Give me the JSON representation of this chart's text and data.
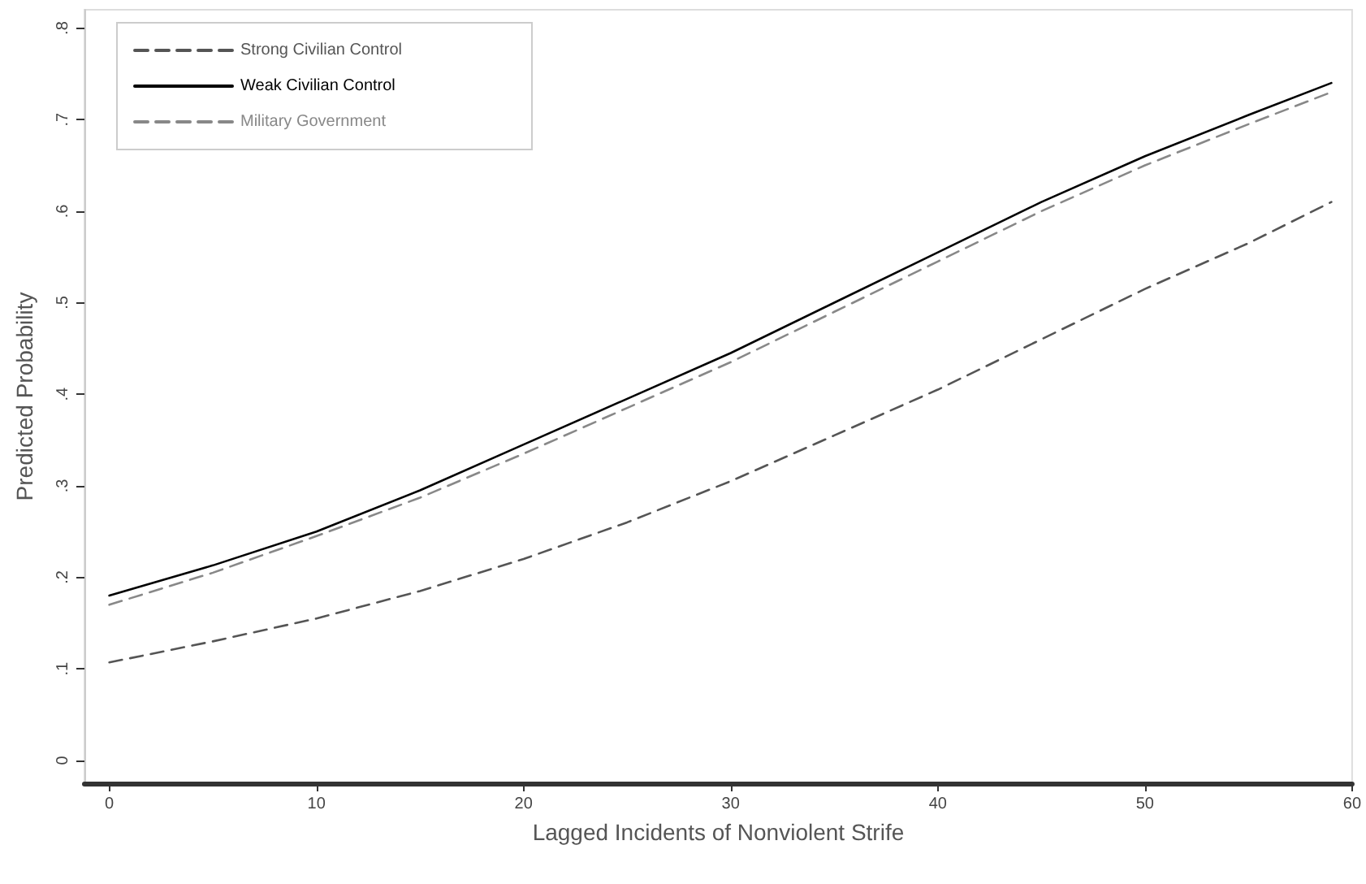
{
  "chart_data": {
    "type": "line",
    "xlabel": "Lagged Incidents of Nonviolent Strife",
    "ylabel": "Predicted Probability",
    "xlim": [
      -1.2,
      60
    ],
    "xticks": [
      0,
      10,
      20,
      30,
      40,
      50,
      60
    ],
    "ylim": [
      -0.025,
      0.82
    ],
    "yticks": [
      0,
      {
        "value": 0.1,
        "label": ".1"
      },
      {
        "value": 0.2,
        "label": ".2"
      },
      {
        "value": 0.3,
        "label": ".3"
      },
      {
        "value": 0.4,
        "label": ".4"
      },
      {
        "value": 0.5,
        "label": ".5"
      },
      {
        "value": 0.6,
        "label": ".6"
      },
      {
        "value": 0.7,
        "label": ".7"
      },
      {
        "value": 0.8,
        "label": ".8"
      }
    ],
    "x": [
      0,
      5,
      10,
      15,
      20,
      25,
      30,
      35,
      40,
      45,
      50,
      55,
      59
    ],
    "legend": "top left",
    "grid": false,
    "marker": "none",
    "series": [
      {
        "name": "Strong Civilian Control",
        "color": "#555555",
        "line_style": "dashed",
        "values": [
          0.107,
          0.13,
          0.155,
          0.185,
          0.22,
          0.26,
          0.305,
          0.355,
          0.405,
          0.46,
          0.515,
          0.565,
          0.61
        ]
      },
      {
        "name": "Weak Civilian Control",
        "color": "#000000",
        "line_style": "solid",
        "values": [
          0.18,
          0.213,
          0.25,
          0.295,
          0.345,
          0.395,
          0.445,
          0.5,
          0.555,
          0.61,
          0.66,
          0.705,
          0.74
        ]
      },
      {
        "name": "Military Government",
        "color": "#888888",
        "line_style": "dashed",
        "values": [
          0.17,
          0.205,
          0.245,
          0.287,
          0.335,
          0.385,
          0.435,
          0.49,
          0.545,
          0.6,
          0.65,
          0.695,
          0.73
        ]
      }
    ]
  }
}
